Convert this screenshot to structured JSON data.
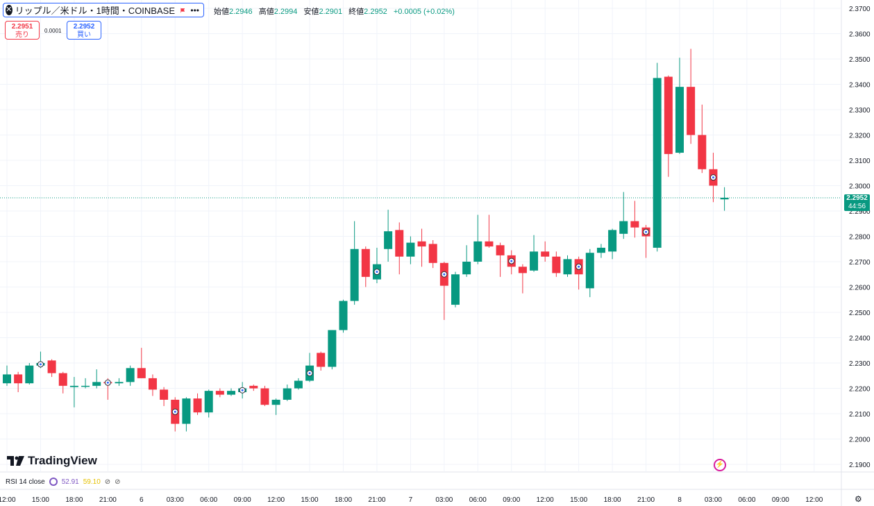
{
  "header": {
    "title": "リップル／米ドル・1時間・COINBASE",
    "close_glyph": "✕",
    "more_glyph": "•••"
  },
  "ohlc": {
    "open_label": "始値",
    "open": "2.2946",
    "high_label": "高値",
    "high": "2.2994",
    "low_label": "安値",
    "low": "2.2901",
    "close_label": "終値",
    "close": "2.2952",
    "change": "+0.0005 (+0.02%)"
  },
  "trade": {
    "sell_price": "2.2951",
    "sell_label": "売り",
    "spread": "0.0001",
    "buy_price": "2.2952",
    "buy_label": "買い"
  },
  "last_price": {
    "price": "2.2952",
    "countdown": "44:56"
  },
  "rsi": {
    "label": "RSI 14 close",
    "value1": "52.91",
    "value2": "59.10"
  },
  "brand": {
    "name": "TradingView"
  },
  "colors": {
    "up": "#089981",
    "down": "#f23645",
    "grid": "#f0f3fa",
    "axis_text": "#131722"
  },
  "icons": {
    "flag": "flag-icon",
    "settings": "gear-icon",
    "alert": "lightning-icon",
    "events": "target-marker-icon"
  },
  "chart_data": {
    "type": "candlestick",
    "y_ticks": [
      "2.3700",
      "2.3600",
      "2.3500",
      "2.3400",
      "2.3300",
      "2.3200",
      "2.3100",
      "2.3000",
      "2.2900",
      "2.2800",
      "2.2700",
      "2.2600",
      "2.2500",
      "2.2400",
      "2.2300",
      "2.2200",
      "2.2100",
      "2.2000",
      "2.1900"
    ],
    "x_ticks": [
      "12:00",
      "15:00",
      "18:00",
      "21:00",
      "6",
      "03:00",
      "06:00",
      "09:00",
      "12:00",
      "15:00",
      "18:00",
      "21:00",
      "7",
      "03:00",
      "06:00",
      "09:00",
      "12:00",
      "15:00",
      "18:00",
      "21:00",
      "8",
      "03:00",
      "06:00",
      "09:00",
      "12:00"
    ],
    "ylim": [
      2.1865,
      2.3745
    ],
    "current_price": 2.2952,
    "candles": [
      {
        "o": 2.222,
        "h": 2.229,
        "l": 2.221,
        "c": 2.2255
      },
      {
        "o": 2.2255,
        "h": 2.2265,
        "l": 2.2185,
        "c": 2.222
      },
      {
        "o": 2.222,
        "h": 2.23,
        "l": 2.2215,
        "c": 2.229
      },
      {
        "o": 2.229,
        "h": 2.2345,
        "l": 2.228,
        "c": 2.23,
        "marker": true
      },
      {
        "o": 2.231,
        "h": 2.2315,
        "l": 2.2245,
        "c": 2.226
      },
      {
        "o": 2.226,
        "h": 2.2265,
        "l": 2.218,
        "c": 2.221
      },
      {
        "o": 2.2205,
        "h": 2.2245,
        "l": 2.2125,
        "c": 2.221
      },
      {
        "o": 2.221,
        "h": 2.224,
        "l": 2.22,
        "c": 2.221
      },
      {
        "o": 2.221,
        "h": 2.2275,
        "l": 2.22,
        "c": 2.2225
      },
      {
        "o": 2.2225,
        "h": 2.224,
        "l": 2.2155,
        "c": 2.222,
        "marker": true
      },
      {
        "o": 2.222,
        "h": 2.224,
        "l": 2.221,
        "c": 2.2225
      },
      {
        "o": 2.2225,
        "h": 2.229,
        "l": 2.221,
        "c": 2.228
      },
      {
        "o": 2.228,
        "h": 2.236,
        "l": 2.224,
        "c": 2.224
      },
      {
        "o": 2.224,
        "h": 2.2255,
        "l": 2.217,
        "c": 2.2195
      },
      {
        "o": 2.2195,
        "h": 2.2205,
        "l": 2.213,
        "c": 2.2155
      },
      {
        "o": 2.2155,
        "h": 2.2165,
        "l": 2.203,
        "c": 2.206,
        "marker": true
      },
      {
        "o": 2.206,
        "h": 2.2165,
        "l": 2.203,
        "c": 2.216
      },
      {
        "o": 2.216,
        "h": 2.218,
        "l": 2.2095,
        "c": 2.2105
      },
      {
        "o": 2.2105,
        "h": 2.2195,
        "l": 2.2085,
        "c": 2.219
      },
      {
        "o": 2.219,
        "h": 2.22,
        "l": 2.2165,
        "c": 2.2175
      },
      {
        "o": 2.2175,
        "h": 2.22,
        "l": 2.217,
        "c": 2.219
      },
      {
        "o": 2.2185,
        "h": 2.2225,
        "l": 2.216,
        "c": 2.22,
        "marker": true
      },
      {
        "o": 2.221,
        "h": 2.2215,
        "l": 2.219,
        "c": 2.22
      },
      {
        "o": 2.22,
        "h": 2.221,
        "l": 2.213,
        "c": 2.2135
      },
      {
        "o": 2.2135,
        "h": 2.216,
        "l": 2.2095,
        "c": 2.2155
      },
      {
        "o": 2.2155,
        "h": 2.2215,
        "l": 2.215,
        "c": 2.22
      },
      {
        "o": 2.22,
        "h": 2.224,
        "l": 2.2195,
        "c": 2.223
      },
      {
        "o": 2.223,
        "h": 2.234,
        "l": 2.2225,
        "c": 2.229,
        "marker": true
      },
      {
        "o": 2.234,
        "h": 2.2345,
        "l": 2.227,
        "c": 2.2285
      },
      {
        "o": 2.2285,
        "h": 2.243,
        "l": 2.2275,
        "c": 2.243
      },
      {
        "o": 2.243,
        "h": 2.255,
        "l": 2.242,
        "c": 2.2545
      },
      {
        "o": 2.2545,
        "h": 2.286,
        "l": 2.253,
        "c": 2.275
      },
      {
        "o": 2.275,
        "h": 2.276,
        "l": 2.26,
        "c": 2.264
      },
      {
        "o": 2.263,
        "h": 2.2755,
        "l": 2.2615,
        "c": 2.269,
        "marker": true
      },
      {
        "o": 2.275,
        "h": 2.2905,
        "l": 2.27,
        "c": 2.282
      },
      {
        "o": 2.2825,
        "h": 2.2855,
        "l": 2.265,
        "c": 2.272
      },
      {
        "o": 2.272,
        "h": 2.28,
        "l": 2.269,
        "c": 2.2775
      },
      {
        "o": 2.278,
        "h": 2.283,
        "l": 2.268,
        "c": 2.276
      },
      {
        "o": 2.277,
        "h": 2.2785,
        "l": 2.2675,
        "c": 2.2695
      },
      {
        "o": 2.2695,
        "h": 2.27,
        "l": 2.247,
        "c": 2.2605,
        "marker": true
      },
      {
        "o": 2.253,
        "h": 2.266,
        "l": 2.252,
        "c": 2.265
      },
      {
        "o": 2.265,
        "h": 2.2765,
        "l": 2.264,
        "c": 2.27
      },
      {
        "o": 2.27,
        "h": 2.2885,
        "l": 2.269,
        "c": 2.278
      },
      {
        "o": 2.278,
        "h": 2.2885,
        "l": 2.2755,
        "c": 2.276
      },
      {
        "o": 2.2765,
        "h": 2.2775,
        "l": 2.264,
        "c": 2.2725
      },
      {
        "o": 2.2725,
        "h": 2.2745,
        "l": 2.265,
        "c": 2.268,
        "marker": true
      },
      {
        "o": 2.268,
        "h": 2.269,
        "l": 2.2575,
        "c": 2.2655
      },
      {
        "o": 2.2665,
        "h": 2.2805,
        "l": 2.266,
        "c": 2.274
      },
      {
        "o": 2.274,
        "h": 2.278,
        "l": 2.27,
        "c": 2.272
      },
      {
        "o": 2.272,
        "h": 2.274,
        "l": 2.264,
        "c": 2.2655
      },
      {
        "o": 2.265,
        "h": 2.2725,
        "l": 2.264,
        "c": 2.271
      },
      {
        "o": 2.271,
        "h": 2.272,
        "l": 2.259,
        "c": 2.265,
        "marker": true
      },
      {
        "o": 2.2595,
        "h": 2.275,
        "l": 2.256,
        "c": 2.2735
      },
      {
        "o": 2.2735,
        "h": 2.277,
        "l": 2.2715,
        "c": 2.2755
      },
      {
        "o": 2.274,
        "h": 2.283,
        "l": 2.271,
        "c": 2.2825
      },
      {
        "o": 2.281,
        "h": 2.2975,
        "l": 2.279,
        "c": 2.286
      },
      {
        "o": 2.286,
        "h": 2.294,
        "l": 2.2795,
        "c": 2.2835
      },
      {
        "o": 2.2835,
        "h": 2.2845,
        "l": 2.2715,
        "c": 2.28,
        "marker": true
      },
      {
        "o": 2.2755,
        "h": 2.3485,
        "l": 2.274,
        "c": 2.3425
      },
      {
        "o": 2.343,
        "h": 2.3435,
        "l": 2.3035,
        "c": 2.3125
      },
      {
        "o": 2.313,
        "h": 2.3505,
        "l": 2.3125,
        "c": 2.339
      },
      {
        "o": 2.339,
        "h": 2.354,
        "l": 2.3165,
        "c": 2.32
      },
      {
        "o": 2.32,
        "h": 2.332,
        "l": 2.305,
        "c": 2.3065
      },
      {
        "o": 2.3065,
        "h": 2.313,
        "l": 2.2935,
        "c": 2.3,
        "marker": true
      },
      {
        "o": 2.2946,
        "h": 2.2994,
        "l": 2.2901,
        "c": 2.2952
      }
    ]
  }
}
